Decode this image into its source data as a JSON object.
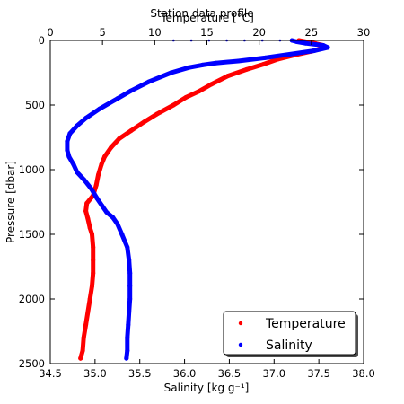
{
  "chart_data": {
    "type": "line",
    "title": "Station data profile",
    "ylabel": "Pressure [dbar]",
    "ylim": [
      2500,
      0
    ],
    "yticks": [
      "0",
      "500",
      "1000",
      "1500",
      "2000",
      "2500"
    ],
    "grid": false,
    "legend_position": "bottom-right",
    "x_bottom": {
      "label": "Salinity [kg g⁻¹]",
      "range": [
        34.5,
        38.0
      ],
      "ticks": [
        "34.5",
        "35.0",
        "35.5",
        "36.0",
        "36.5",
        "37.0",
        "37.5",
        "38.0"
      ]
    },
    "x_top": {
      "label": "Temperature [°C]",
      "range": [
        0,
        30
      ],
      "ticks": [
        "0",
        "5",
        "10",
        "15",
        "20",
        "25",
        "30"
      ]
    },
    "series": [
      {
        "name": "Temperature",
        "color": "#ff0000",
        "axis": "top",
        "points": [
          [
            23.8,
            0
          ],
          [
            24.6,
            12
          ],
          [
            25.4,
            24
          ],
          [
            26.0,
            36
          ],
          [
            26.3,
            48
          ],
          [
            26.1,
            60
          ],
          [
            25.0,
            85
          ],
          [
            23.3,
            115
          ],
          [
            21.8,
            145
          ],
          [
            20.4,
            185
          ],
          [
            18.8,
            225
          ],
          [
            17.0,
            275
          ],
          [
            15.4,
            340
          ],
          [
            14.2,
            395
          ],
          [
            13.0,
            440
          ],
          [
            11.8,
            500
          ],
          [
            10.2,
            570
          ],
          [
            9.0,
            630
          ],
          [
            7.7,
            700
          ],
          [
            6.6,
            760
          ],
          [
            5.8,
            830
          ],
          [
            5.2,
            900
          ],
          [
            4.9,
            960
          ],
          [
            4.6,
            1040
          ],
          [
            4.4,
            1120
          ],
          [
            4.1,
            1200
          ],
          [
            3.5,
            1260
          ],
          [
            3.4,
            1320
          ],
          [
            3.6,
            1380
          ],
          [
            3.8,
            1450
          ],
          [
            4.0,
            1500
          ],
          [
            4.1,
            1600
          ],
          [
            4.1,
            1700
          ],
          [
            4.1,
            1800
          ],
          [
            4.0,
            1900
          ],
          [
            3.8,
            2000
          ],
          [
            3.6,
            2100
          ],
          [
            3.4,
            2200
          ],
          [
            3.2,
            2300
          ],
          [
            3.1,
            2400
          ],
          [
            2.9,
            2460
          ]
        ]
      },
      {
        "name": "Salinity",
        "color": "#0000ff",
        "axis": "bottom",
        "points": [
          [
            37.2,
            0
          ],
          [
            37.25,
            10
          ],
          [
            37.35,
            22
          ],
          [
            37.55,
            38
          ],
          [
            37.6,
            55
          ],
          [
            37.45,
            80
          ],
          [
            36.9,
            135
          ],
          [
            36.6,
            160
          ],
          [
            36.35,
            175
          ],
          [
            36.2,
            190
          ],
          [
            36.05,
            210
          ],
          [
            35.85,
            250
          ],
          [
            35.6,
            320
          ],
          [
            35.4,
            390
          ],
          [
            35.25,
            450
          ],
          [
            35.05,
            530
          ],
          [
            34.9,
            600
          ],
          [
            34.8,
            660
          ],
          [
            34.72,
            720
          ],
          [
            34.69,
            780
          ],
          [
            34.69,
            850
          ],
          [
            34.71,
            900
          ],
          [
            34.76,
            960
          ],
          [
            34.8,
            1020
          ],
          [
            34.88,
            1080
          ],
          [
            34.96,
            1150
          ],
          [
            35.02,
            1220
          ],
          [
            35.08,
            1280
          ],
          [
            35.13,
            1330
          ],
          [
            35.2,
            1370
          ],
          [
            35.25,
            1420
          ],
          [
            35.3,
            1500
          ],
          [
            35.36,
            1600
          ],
          [
            35.38,
            1700
          ],
          [
            35.39,
            1800
          ],
          [
            35.39,
            1900
          ],
          [
            35.39,
            2000
          ],
          [
            35.38,
            2100
          ],
          [
            35.37,
            2200
          ],
          [
            35.36,
            2300
          ],
          [
            35.36,
            2400
          ],
          [
            35.35,
            2460
          ]
        ]
      }
    ]
  }
}
